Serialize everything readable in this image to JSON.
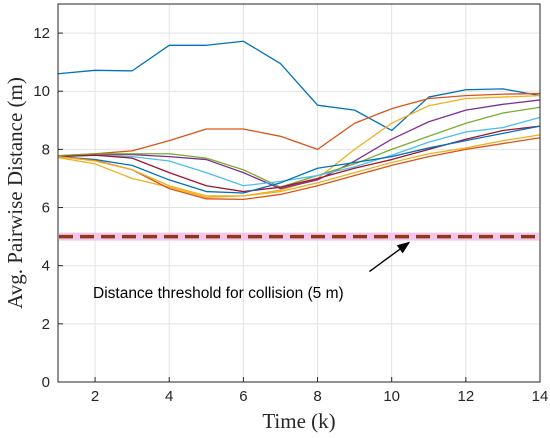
{
  "chart_data": {
    "type": "line",
    "title": "",
    "xlabel": "Time (k)",
    "ylabel": "Avg. Pairwise Distance (m)",
    "xlim": [
      1,
      14
    ],
    "ylim": [
      0,
      13
    ],
    "xticks": [
      2,
      4,
      6,
      8,
      10,
      12,
      14
    ],
    "yticks": [
      0,
      2,
      4,
      6,
      8,
      10,
      12
    ],
    "grid": true,
    "legend": "none",
    "x": [
      1,
      2,
      3,
      4,
      5,
      6,
      7,
      8,
      9,
      10,
      11,
      12,
      13,
      14
    ],
    "series": [
      {
        "color": "#0072BD",
        "values": [
          10.6,
          10.72,
          10.7,
          11.58,
          11.58,
          11.72,
          10.95,
          9.52,
          9.35,
          8.65,
          9.8,
          10.05,
          10.08,
          9.85
        ]
      },
      {
        "color": "#D95319",
        "values": [
          7.78,
          7.85,
          7.95,
          8.3,
          8.7,
          8.7,
          8.45,
          8.0,
          8.9,
          9.4,
          9.75,
          9.85,
          9.9,
          9.92
        ]
      },
      {
        "color": "#EDB120",
        "values": [
          7.72,
          7.5,
          7.0,
          6.7,
          6.35,
          6.4,
          6.6,
          7.0,
          8.0,
          8.9,
          9.5,
          9.75,
          9.8,
          9.85
        ]
      },
      {
        "color": "#7E2F8E",
        "values": [
          7.75,
          7.82,
          7.82,
          7.75,
          7.65,
          7.2,
          6.65,
          6.95,
          7.6,
          8.35,
          8.95,
          9.35,
          9.55,
          9.7
        ]
      },
      {
        "color": "#77AC30",
        "values": [
          7.78,
          7.85,
          7.85,
          7.85,
          7.7,
          7.3,
          6.7,
          7.1,
          7.5,
          8.0,
          8.45,
          8.9,
          9.25,
          9.45
        ]
      },
      {
        "color": "#4DBEEE",
        "values": [
          7.75,
          7.8,
          7.75,
          7.6,
          7.2,
          6.75,
          6.9,
          7.1,
          7.4,
          7.8,
          8.25,
          8.6,
          8.75,
          9.1
        ]
      },
      {
        "color": "#A2142F",
        "values": [
          7.75,
          7.8,
          7.7,
          7.2,
          6.75,
          6.55,
          6.7,
          7.0,
          7.35,
          7.65,
          8.0,
          8.35,
          8.65,
          8.8
        ]
      },
      {
        "color": "#0072BD",
        "values": [
          7.75,
          7.65,
          7.45,
          6.95,
          6.55,
          6.5,
          6.85,
          7.35,
          7.55,
          7.75,
          8.05,
          8.3,
          8.55,
          8.8
        ]
      },
      {
        "color": "#D95319",
        "values": [
          7.75,
          7.62,
          7.3,
          6.65,
          6.3,
          6.28,
          6.45,
          6.75,
          7.1,
          7.45,
          7.75,
          8.0,
          8.2,
          8.4
        ]
      },
      {
        "color": "#EDB120",
        "values": [
          7.75,
          7.6,
          7.3,
          6.75,
          6.4,
          6.4,
          6.55,
          6.85,
          7.2,
          7.55,
          7.85,
          8.05,
          8.3,
          8.5
        ]
      }
    ],
    "threshold": {
      "y": 5,
      "color": "#8B3A1A",
      "band_color": "#F7C6EC"
    },
    "annotation": {
      "text": "Distance threshold for collision (5 m)",
      "arrow_to_x": 10.5,
      "arrow_to_y": 5,
      "arrow_from_x": 9.4,
      "arrow_from_y": 3.8
    }
  }
}
